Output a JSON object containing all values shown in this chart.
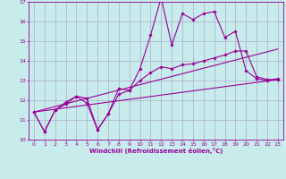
{
  "background_color": "#c8ecec",
  "grid_color": "#aaaacc",
  "line_color": "#990099",
  "xlabel": "Windchill (Refroidissement éolien,°C)",
  "xlim": [
    -0.5,
    23.5
  ],
  "ylim": [
    10,
    17
  ],
  "xticks": [
    0,
    1,
    2,
    3,
    4,
    5,
    6,
    7,
    8,
    9,
    10,
    11,
    12,
    13,
    14,
    15,
    16,
    17,
    18,
    19,
    20,
    21,
    22,
    23
  ],
  "yticks": [
    10,
    11,
    12,
    13,
    14,
    15,
    16,
    17
  ],
  "series": [
    {
      "x": [
        0,
        1,
        2,
        3,
        4,
        5,
        6,
        7,
        8,
        9,
        10,
        11,
        12,
        13,
        14,
        15,
        16,
        17,
        18,
        19,
        20,
        21,
        22,
        23
      ],
      "y": [
        11.4,
        10.4,
        11.5,
        11.8,
        12.2,
        12.1,
        10.5,
        11.3,
        12.6,
        12.5,
        13.6,
        15.3,
        17.2,
        14.8,
        16.4,
        16.1,
        16.4,
        16.5,
        15.2,
        15.5,
        13.5,
        13.1,
        13.0,
        13.1
      ],
      "has_markers": true
    },
    {
      "x": [
        0,
        1,
        2,
        3,
        4,
        5,
        6,
        7,
        8,
        9,
        10,
        11,
        12,
        13,
        14,
        15,
        16,
        17,
        18,
        19,
        20,
        21,
        22,
        23
      ],
      "y": [
        11.4,
        10.4,
        11.5,
        11.9,
        12.2,
        11.85,
        10.5,
        11.3,
        12.3,
        12.5,
        13.0,
        13.4,
        13.7,
        13.6,
        13.8,
        13.85,
        14.0,
        14.15,
        14.3,
        14.5,
        14.5,
        13.2,
        13.05,
        13.05
      ],
      "has_markers": true
    },
    {
      "x": [
        0,
        23
      ],
      "y": [
        11.4,
        14.6
      ],
      "has_markers": false
    },
    {
      "x": [
        0,
        23
      ],
      "y": [
        11.4,
        13.05
      ],
      "has_markers": false
    }
  ]
}
